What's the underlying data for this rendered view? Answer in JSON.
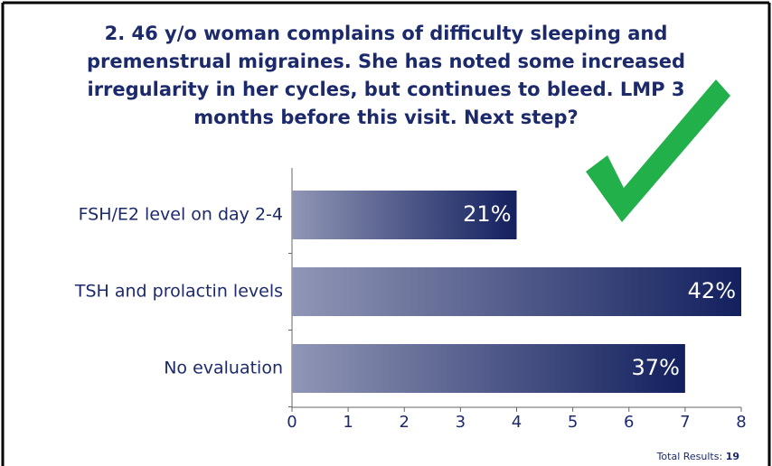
{
  "chart_data": {
    "type": "bar",
    "orientation": "horizontal",
    "title": [
      "2.  46 y/o woman complains of difficulty sleeping and",
      "premenstrual migraines.  She has noted some increased",
      "irregularity in her cycles, but continues to bleed.  LMP 3",
      "months before this visit.  Next step?"
    ],
    "categories": [
      "FSH/E2 level on day 2-4",
      "TSH and prolactin levels",
      "No evaluation"
    ],
    "values": [
      4,
      8,
      7
    ],
    "value_labels": [
      "21%",
      "42%",
      "37%"
    ],
    "color": "#13205e",
    "xlim": [
      0,
      8
    ],
    "xticks": [
      0,
      1,
      2,
      3,
      4,
      5,
      6,
      7,
      8
    ],
    "total_label": "Total Results:",
    "total": 19
  }
}
